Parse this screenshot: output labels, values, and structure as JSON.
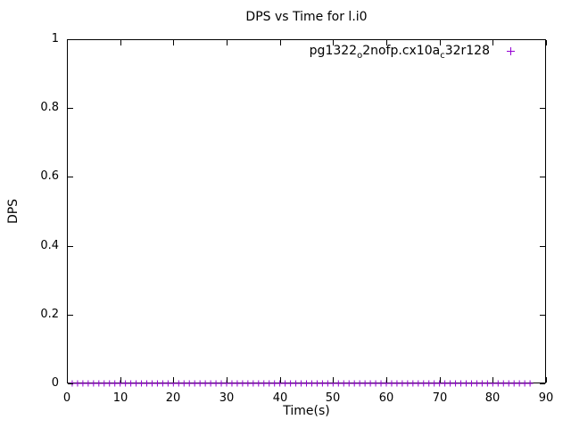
{
  "chart_data": {
    "type": "scatter",
    "title": "DPS vs Time for l.i0",
    "xlabel": "Time(s)",
    "ylabel": "DPS",
    "xlim": [
      0,
      90
    ],
    "ylim": [
      0,
      1
    ],
    "x_ticks": [
      0,
      10,
      20,
      30,
      40,
      50,
      60,
      70,
      80,
      90
    ],
    "y_ticks": [
      0,
      0.2,
      0.4,
      0.6,
      0.8,
      1
    ],
    "grid": false,
    "tick_style": "inward-mirrored-on-all-borders",
    "legend": {
      "position": "top-right-inside",
      "marker_glyph": "+"
    },
    "series": [
      {
        "name": "pg1322_o2nofp.cx10a_c32r128",
        "name_segments": [
          {
            "text": "pg1322"
          },
          {
            "text": "o",
            "sub": true
          },
          {
            "text": "2nofp.cx10a"
          },
          {
            "text": "c",
            "sub": true
          },
          {
            "text": "32r128"
          }
        ],
        "marker": "plus",
        "color": "#9400d3",
        "x": [
          1,
          2,
          3,
          4,
          5,
          6,
          7,
          8,
          9,
          10,
          11,
          12,
          13,
          14,
          15,
          16,
          17,
          18,
          19,
          20,
          21,
          22,
          23,
          24,
          25,
          26,
          27,
          28,
          29,
          30,
          31,
          32,
          33,
          34,
          35,
          36,
          37,
          38,
          39,
          40,
          41,
          42,
          43,
          44,
          45,
          46,
          47,
          48,
          49,
          50,
          51,
          52,
          53,
          54,
          55,
          56,
          57,
          58,
          59,
          60,
          61,
          62,
          63,
          64,
          65,
          66,
          67,
          68,
          69,
          70,
          71,
          72,
          73,
          74,
          75,
          76,
          77,
          78,
          79,
          80,
          81,
          82,
          83,
          84,
          85,
          86,
          87
        ],
        "y": [
          0,
          0,
          0,
          0,
          0,
          0,
          0,
          0,
          0,
          0,
          0,
          0,
          0,
          0,
          0,
          0,
          0,
          0,
          0,
          0,
          0,
          0,
          0,
          0,
          0,
          0,
          0,
          0,
          0,
          0,
          0,
          0,
          0,
          0,
          0,
          0,
          0,
          0,
          0,
          0,
          0,
          0,
          0,
          0,
          0,
          0,
          0,
          0,
          0,
          0,
          0,
          0,
          0,
          0,
          0,
          0,
          0,
          0,
          0,
          0,
          0,
          0,
          0,
          0,
          0,
          0,
          0,
          0,
          0,
          0,
          0,
          0,
          0,
          0,
          0,
          0,
          0,
          0,
          0,
          0,
          0,
          0,
          0,
          0,
          0,
          0,
          0
        ]
      }
    ]
  }
}
